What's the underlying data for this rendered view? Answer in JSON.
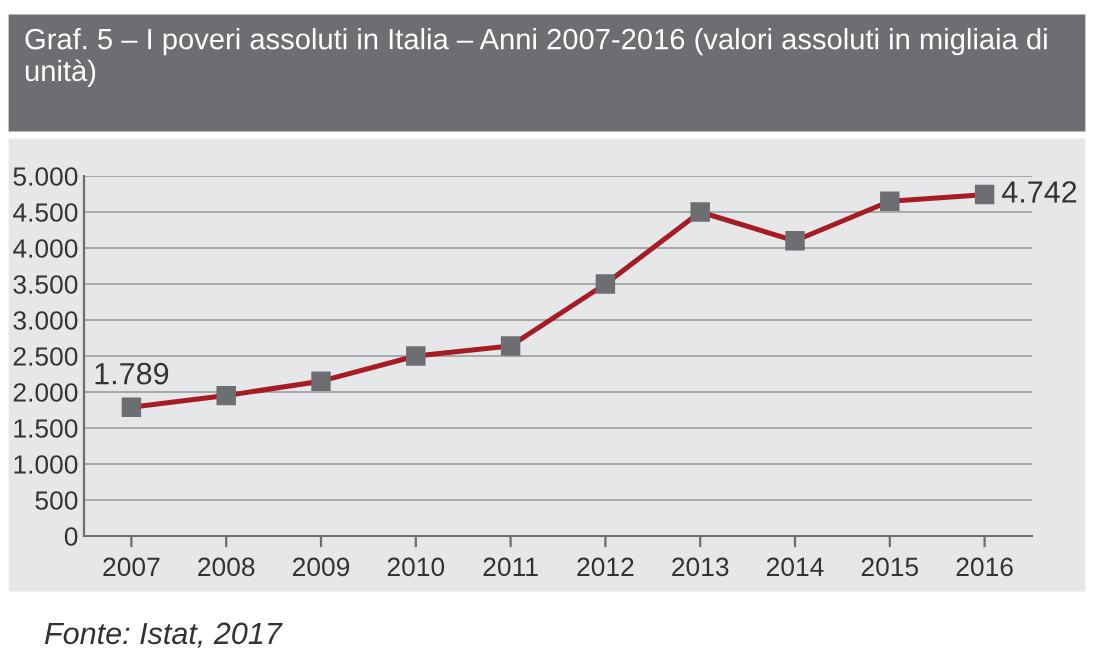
{
  "chart_data": {
    "type": "line",
    "title": "Graf. 5 – I poveri assoluti in Italia – Anni 2007-2016 (valori assoluti in migliaia di unità)",
    "categories": [
      "2007",
      "2008",
      "2009",
      "2010",
      "2011",
      "2012",
      "2013",
      "2014",
      "2015",
      "2016"
    ],
    "series": [
      {
        "color": "#a51c24",
        "values": [
          1789,
          1950,
          2150,
          2500,
          2640,
          3500,
          4500,
          4100,
          4650,
          4742
        ],
        "value_labels": [
          "1.789",
          null,
          null,
          null,
          null,
          null,
          null,
          null,
          null,
          "4.742"
        ]
      }
    ],
    "ylim": [
      0,
      5000
    ],
    "yticks": [
      0,
      500,
      {
        "value": 1000,
        "label": "1.000"
      },
      {
        "value": 1500,
        "label": "1.500"
      },
      {
        "value": 2000,
        "label": "2.000"
      },
      {
        "value": 2500,
        "label": "2.500"
      },
      {
        "value": 3000,
        "label": "3.000"
      },
      {
        "value": 3500,
        "label": "3.500"
      },
      {
        "value": 4000,
        "label": "4.000"
      },
      {
        "value": 4500,
        "label": "4.500"
      },
      {
        "value": 5000,
        "label": "5.000"
      }
    ],
    "grid": "y",
    "marker": "square",
    "line_style": "solid",
    "annotations": [
      "Fonte: Istat, 2017"
    ]
  }
}
